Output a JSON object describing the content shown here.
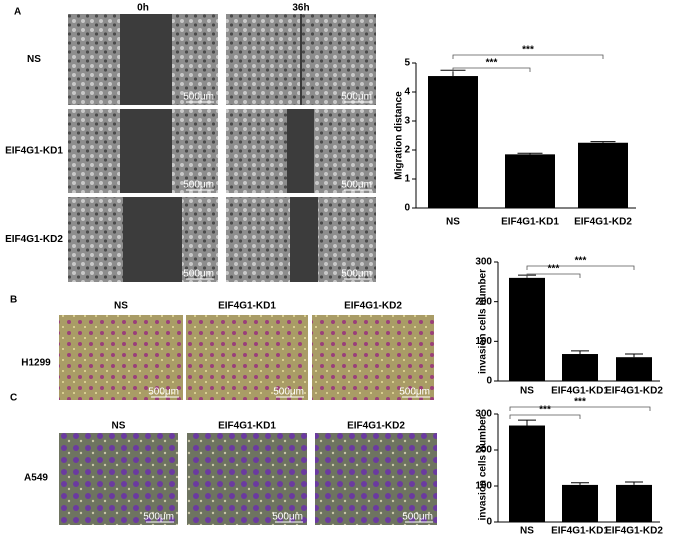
{
  "figure": {
    "panel_labels": [
      "A",
      "B",
      "C"
    ],
    "panel_a": {
      "columns": [
        "0h",
        "36h"
      ],
      "rows": [
        "NS",
        "EIF4G1-KD1",
        "EIF4G1-KD2"
      ]
    },
    "panel_b": {
      "columns": [
        "NS",
        "EIF4G1-KD1",
        "EIF4G1-KD2"
      ],
      "cell_line": "H1299"
    },
    "panel_c": {
      "columns": [
        "NS",
        "EIF4G1-KD1",
        "EIF4G1-KD2"
      ],
      "cell_line": "A549"
    },
    "scale_bar": "500μm"
  },
  "chart_data": [
    {
      "type": "bar",
      "y_label": "Migration distance",
      "categories": [
        "NS",
        "EIF4G1-KD1",
        "EIF4G1-KD2"
      ],
      "values": [
        4.55,
        1.85,
        2.25
      ],
      "errors": [
        0.2,
        0.04,
        0.04
      ],
      "color": "#000000",
      "ylim": [
        0,
        5
      ],
      "yticks": [
        0,
        1,
        2,
        3,
        4,
        5
      ],
      "significance": [
        "***",
        "***"
      ]
    },
    {
      "type": "bar",
      "y_label": "invasion cells number",
      "categories": [
        "NS",
        "EIF4G1-KD1",
        "EIF4G1-KD2"
      ],
      "values": [
        260,
        68,
        60
      ],
      "errors": [
        7,
        8,
        8
      ],
      "color": "#000000",
      "ylim": [
        0,
        300
      ],
      "yticks": [
        0,
        100,
        200,
        300
      ],
      "significance": [
        "***",
        "***"
      ]
    },
    {
      "type": "bar",
      "y_label": "invasion cells number",
      "categories": [
        "NS",
        "EIF4G1-KD1",
        "EIF4G1-KD2"
      ],
      "values": [
        268,
        103,
        103
      ],
      "errors": [
        15,
        6,
        8
      ],
      "color": "#000000",
      "ylim": [
        0,
        300
      ],
      "yticks": [
        0,
        100,
        200,
        300
      ],
      "significance": [
        "***",
        "***"
      ]
    }
  ]
}
